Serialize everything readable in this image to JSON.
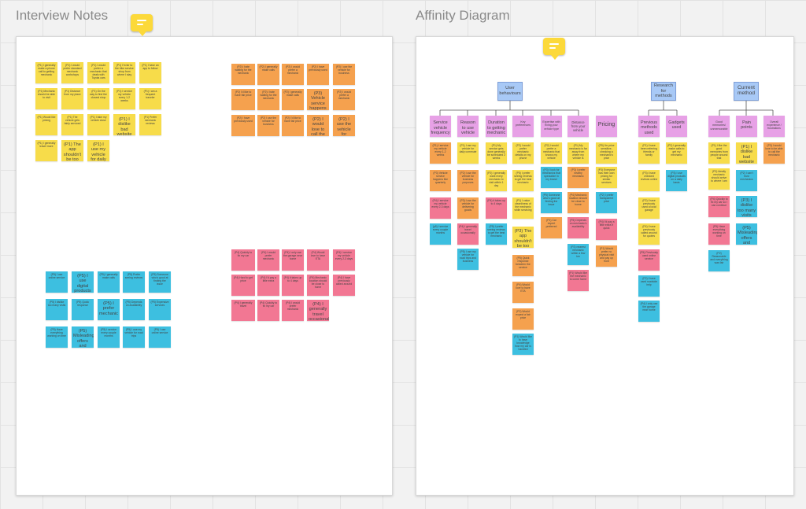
{
  "frames": {
    "interview_title": "Interview Notes",
    "affinity_title": "Affinity Diagram"
  },
  "colors": {
    "yellow": "#f7dc4a",
    "orange": "#f5a14e",
    "pink": "#f27793",
    "cyan": "#3dbfe0",
    "blue": "#a8c9f6",
    "purple": "#e7a1e6",
    "comment": "#fcd93a"
  },
  "affinity": {
    "top": {
      "user_behaviour": "User behaviours",
      "research_methods": "Research for methods",
      "current_method": "Current method"
    },
    "cols": {
      "service_frequency": "Service vehicle frequency",
      "reason": "Reason to use vehicle",
      "duration": "Duration to getting mechanic",
      "preferences": "Key preferences",
      "expertise": "Expertise with fixing your vehicle type",
      "distance": "Distance from your vehicle",
      "pricing": "Pricing",
      "previous_methods": "Previous methods used",
      "gadgets": "Gadgets used",
      "good_memories": "Good memories/ unmemorable",
      "pain_points": "Pain points",
      "overall": "Overall experience / frustrations"
    },
    "notes": {
      "sv1": "(P1) I service my vehicle every 1-2 weeks",
      "sv2": "(P3) Vehicle service happens like quarterly",
      "sv3": "(P4) I service my vehicle every 2-3 days",
      "sv4": "(p5) I service every couple months",
      "ru1": "(P1) I use my vehicle for daily commute",
      "ru2": "(P2) I use the vehicle for business purposes",
      "ru3": "(P3) I use the vehicle for delivering goods",
      "ru4": "(P4) I generally travel occasionally",
      "ru5": "(P5) I use my vehicle for road trips and business",
      "dm1": "(P1) My service gets done generally be scheduled 2 weeks",
      "dm2": "(P2) I generally want every mechanic to visit within 1 day",
      "dm3": "(P4) it takes up to 4 days",
      "pl1": "(P2) I would prefer mechanic details on my phone",
      "pl2": "(P5) I prefer seeing reviews to get the best mechanic",
      "pl3": "(P1) I value cleanliness of the mechanic while servicing",
      "pl4": "(P3) The app shouldn't be too busy",
      "pl5": "(P5) Quick response between the service",
      "pl6": "(P4) Would love to have ETA",
      "pl7": "(P2) Would expect a fair price",
      "pl8": "(P1) Would like to have knowledge how my car is handled",
      "ex1": "(P2) I would prefer a mechanic that knows my vehicle",
      "ex2": "(P3) I look for mechanics that specialize in my brand",
      "ex3": "(P5) Someone who's good at finding the issue",
      "ex4": "(P1) Car expert preferred",
      "di1": "(P1) My mechanic is far away from where my vehicle is",
      "di2": "(P3) I prefer nearby mechanic",
      "di3": "(P4) Mechanic location should be close to home",
      "di4": "(P5) Depends on mechanic's availability",
      "di5": "(P2) nearest mechanic within a few km",
      "di6": "(P1) Would like the mechanic to come home",
      "pr1": "(P5) I'm price sensitive, checking a mechanic's price",
      "pr2": "(P3) Everyone has their own pricing for similar services",
      "pr3": "(P2) I prefer transparent price",
      "pr4": "(P4) I'd pay a little extra if quick",
      "pr5": "(P1) Would prefer no physical visit and pay up front",
      "pm1": "(P1) I have been referring friends or family",
      "pm2": "(P3) I have checked reviews online",
      "pm3": "(P2) I have previously used a local garage",
      "pm4": "(P4) I have previously called around for quotes",
      "pm5": "(P5) Previously used online service",
      "pm6": "(P2) I have used roadside help",
      "pm7": "(P4) I only use the garage near home",
      "gu1": "(P2) I generally make calls to get my mechanic",
      "gu2": "(P3) I use digital products on a daily basis",
      "gm1": "(P1) I like the good memories from people around that",
      "gm2": "(P3) Ideally mechanic should arrive to where I am",
      "gm3": "(P4) Quickly to fix my car so I can continue",
      "gm4": "(P5) Have everything working on time",
      "gm5": "(P2) Reasonable and everything was fair",
      "pp1": "(P1) I dislike bad website or experience",
      "pp2": "(P2) I can't trust mechanics",
      "pp3": "(P3) I dislike too many visits",
      "pp4": "(P5) Misleading offers and information",
      "ov1": "(P3) I would love to be able to call the mechanic",
      "ov2": "(P2) I hate waiting for the mechanic",
      "ov3": "(P1) Not great to find information",
      "ov4": "(P4) Hard to get price",
      "ov5": "(P5) Expensive services"
    }
  },
  "interview": {
    "n1": "(P1) I generally make a phone call to getting mechanic",
    "n2": "(P1) I would prefer standard mechanic workshops",
    "n3": "(P1) I would prefer a mechanic that deals with Toyota cars",
    "n4": "(P1) I'm far to the bike service shop from where I stay",
    "n5": "(P1) I have an app to follow",
    "n6": "(P1) Mechanic should be able to visit",
    "n7": "(P1) Distance from my place",
    "n8": "(P1) I service my vehicle every 1-2 weeks",
    "n9": "(P1) On the way to find the closest shop",
    "n10": "(P1) I am a frequent traveler",
    "n11": "(P1) Would like pricing",
    "n12": "(P1) The vehicle gets fairly serviced",
    "n13": "(P1) I take my vehicle close",
    "n14": "(P1) I dislike bad website or experience",
    "n15": "(P1) Prefer mechanic reviews",
    "n16": "(P1) I generally travel more",
    "n17": "(P1) The app shouldn't be too busy",
    "n18": "(P1) I use my vehicle for daily commute",
    "o1": "(P2) I hate waiting for the mechanic",
    "o2": "(P2) I generally make calls",
    "o3": "(P2) I would prefer a mechanic",
    "o4": "(P2) I have previously used",
    "o5": "(P2) I use the vehicle for business",
    "o6": "(P2) I'd like to have fair price",
    "o7": "(P3) Vehicle service happens like quarterly",
    "o8": "(P2) I would love to call the mechanic",
    "o9": "(P2) I use the vehicle for business purposes",
    "c1": "(P5) I use online service",
    "c2": "(P5) I use digital products on a daily basis",
    "c3": "(P5) I generally make calls",
    "c4": "(P5) Prefer seeing reviews",
    "c5": "(P5) Misleading offers and information",
    "c6": "(P5) Someone who's good at finding the issue",
    "c7": "(P5) I dislike too many visits",
    "c8": "(P5) Quick response",
    "c9": "(P5) I service every couple months",
    "c10": "(P5) Depends on availability",
    "c11": "(P5) I prefer mechanic",
    "c12": "(P5) Expensive services",
    "c13": "(P5) Have everything working on time",
    "c14": "(P5) I use my vehicle for road trips",
    "p1": "(P4) Quickly to fix my car",
    "p2": "(P4) I would prefer mechanic",
    "p3": "(P4) I service my vehicle every 2-3 days",
    "p4": "(P4) I only use the garage near home",
    "p5": "(P4) I generally travel occasionally",
    "p6": "(P4) Would love to have ETA",
    "p7": "(P4) Hard to get price",
    "p8": "(P4) I'd pay a little extra",
    "p9": "(P4) it takes up to 4 days",
    "p10": "(P4) Mechanic location should be close to home",
    "p11": "(P4) I have previously called around",
    "p12": "(P4) I generally travel"
  }
}
